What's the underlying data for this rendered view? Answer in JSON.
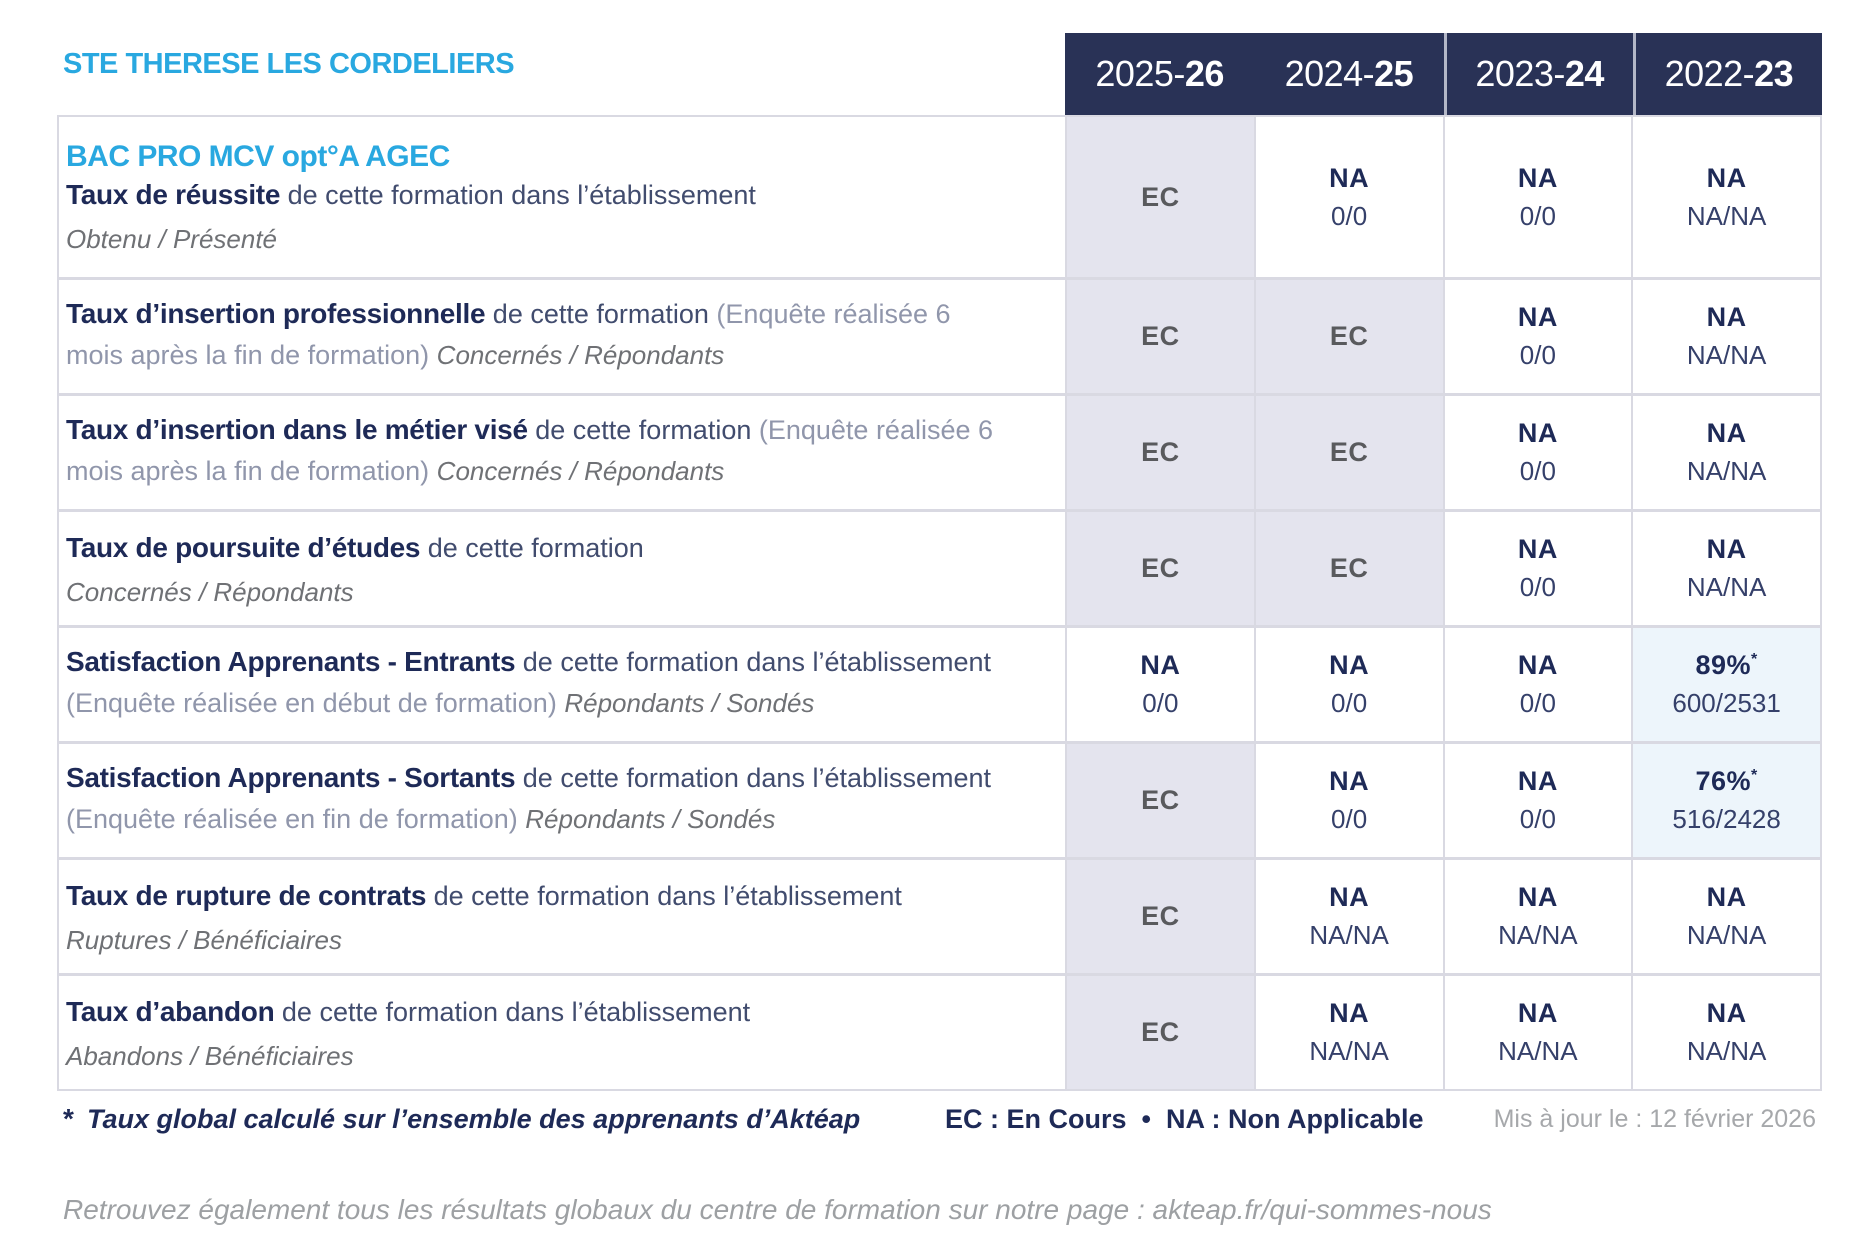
{
  "school": "STE THERESE LES CORDELIERS",
  "program": "BAC PRO MCV opt°A AGEC",
  "years": [
    {
      "prefix": "2025-",
      "suffix": "26"
    },
    {
      "prefix": "2024-",
      "suffix": "25"
    },
    {
      "prefix": "2023-",
      "suffix": "24"
    },
    {
      "prefix": "2022-",
      "suffix": "23"
    }
  ],
  "colors": {
    "accent_blue": "#29a8e0",
    "navy": "#1e2a57",
    "header_bg": "#293256",
    "ec_bg": "#e4e4ee",
    "pct_bg": "#edf5fb"
  },
  "rows": [
    {
      "name": "taux-de-reussite",
      "segments": [
        {
          "style": "bold",
          "text": "Taux de réussite"
        },
        {
          "style": "normal",
          "text": " de cette formation dans l’établissement"
        }
      ],
      "subline": "Obtenu / Présenté",
      "cells": [
        {
          "type": "ec",
          "main": "EC"
        },
        {
          "type": "na",
          "main": "NA",
          "sub": "0/0"
        },
        {
          "type": "na",
          "main": "NA",
          "sub": "0/0"
        },
        {
          "type": "na",
          "main": "NA",
          "sub": "NA/NA"
        }
      ]
    },
    {
      "name": "taux-insertion-professionnelle",
      "segments": [
        {
          "style": "bold",
          "text": "Taux d’insertion professionnelle"
        },
        {
          "style": "normal",
          "text": " de cette formation "
        },
        {
          "style": "paren",
          "text": "(Enquête réalisée 6 mois après la fin de formation) "
        },
        {
          "style": "italic",
          "text": "Concernés / Répondants"
        }
      ],
      "subline": null,
      "cells": [
        {
          "type": "ec",
          "main": "EC"
        },
        {
          "type": "ec",
          "main": "EC"
        },
        {
          "type": "na",
          "main": "NA",
          "sub": "0/0"
        },
        {
          "type": "na",
          "main": "NA",
          "sub": "NA/NA"
        }
      ]
    },
    {
      "name": "taux-insertion-metier-vise",
      "segments": [
        {
          "style": "bold",
          "text": "Taux d’insertion dans le métier visé"
        },
        {
          "style": "normal",
          "text": " de cette formation "
        },
        {
          "style": "paren",
          "text": "(Enquête réalisée 6 mois après la fin de formation) "
        },
        {
          "style": "italic",
          "text": "Concernés / Répondants"
        }
      ],
      "subline": null,
      "cells": [
        {
          "type": "ec",
          "main": "EC"
        },
        {
          "type": "ec",
          "main": "EC"
        },
        {
          "type": "na",
          "main": "NA",
          "sub": "0/0"
        },
        {
          "type": "na",
          "main": "NA",
          "sub": "NA/NA"
        }
      ]
    },
    {
      "name": "taux-poursuite-etudes",
      "segments": [
        {
          "style": "bold",
          "text": "Taux de poursuite d’études"
        },
        {
          "style": "normal",
          "text": " de cette formation"
        }
      ],
      "subline": "Concernés / Répondants",
      "cells": [
        {
          "type": "ec",
          "main": "EC"
        },
        {
          "type": "ec",
          "main": "EC"
        },
        {
          "type": "na",
          "main": "NA",
          "sub": "0/0"
        },
        {
          "type": "na",
          "main": "NA",
          "sub": "NA/NA"
        }
      ]
    },
    {
      "name": "satisfaction-apprenants-entrants",
      "segments": [
        {
          "style": "bold",
          "text": "Satisfaction Apprenants - Entrants"
        },
        {
          "style": "normal",
          "text": " de cette formation dans l’établissement "
        },
        {
          "style": "paren",
          "text": "(Enquête réalisée en début de formation) "
        },
        {
          "style": "italic",
          "text": "Répondants / Sondés"
        }
      ],
      "subline": null,
      "cells": [
        {
          "type": "na",
          "main": "NA",
          "sub": "0/0"
        },
        {
          "type": "na",
          "main": "NA",
          "sub": "0/0"
        },
        {
          "type": "na",
          "main": "NA",
          "sub": "0/0"
        },
        {
          "type": "pct",
          "main": "89%",
          "star": "*",
          "sub": "600/2531"
        }
      ]
    },
    {
      "name": "satisfaction-apprenants-sortants",
      "segments": [
        {
          "style": "bold",
          "text": "Satisfaction Apprenants - Sortants"
        },
        {
          "style": "normal",
          "text": " de cette formation dans l’établissement "
        },
        {
          "style": "paren",
          "text": "(Enquête réalisée en fin de formation) "
        },
        {
          "style": "italic",
          "text": "Répondants / Sondés"
        }
      ],
      "subline": null,
      "cells": [
        {
          "type": "ec",
          "main": "EC"
        },
        {
          "type": "na",
          "main": "NA",
          "sub": "0/0"
        },
        {
          "type": "na",
          "main": "NA",
          "sub": "0/0"
        },
        {
          "type": "pct",
          "main": "76%",
          "star": "*",
          "sub": "516/2428"
        }
      ]
    },
    {
      "name": "taux-rupture-contrats",
      "segments": [
        {
          "style": "bold",
          "text": "Taux de rupture de contrats"
        },
        {
          "style": "normal",
          "text": " de cette formation dans l’établissement"
        }
      ],
      "subline": "Ruptures / Bénéficiaires",
      "cells": [
        {
          "type": "ec",
          "main": "EC"
        },
        {
          "type": "na",
          "main": "NA",
          "sub": "NA/NA"
        },
        {
          "type": "na",
          "main": "NA",
          "sub": "NA/NA"
        },
        {
          "type": "na",
          "main": "NA",
          "sub": "NA/NA"
        }
      ]
    },
    {
      "name": "taux-abandon",
      "segments": [
        {
          "style": "bold",
          "text": "Taux d’abandon"
        },
        {
          "style": "normal",
          "text": " de cette formation dans l’établissement"
        }
      ],
      "subline": "Abandons / Bénéficiaires",
      "cells": [
        {
          "type": "ec",
          "main": "EC"
        },
        {
          "type": "na",
          "main": "NA",
          "sub": "NA/NA"
        },
        {
          "type": "na",
          "main": "NA",
          "sub": "NA/NA"
        },
        {
          "type": "na",
          "main": "NA",
          "sub": "NA/NA"
        }
      ]
    }
  ],
  "footer": {
    "star": "*",
    "note": "Taux global calculé sur l’ensemble des apprenants d’Aktéap",
    "legend": "EC : En Cours  •  NA : Non Applicable",
    "updated": "Mis à jour le : 12 février 2026",
    "bottom": "Retrouvez également tous les résultats globaux du centre de formation sur notre page : akteap.fr/qui-sommes-nous"
  }
}
